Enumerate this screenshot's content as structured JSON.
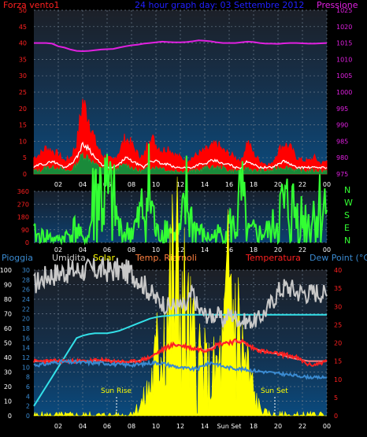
{
  "colors": {
    "wind": "#ff2020",
    "gust": "#ff0000",
    "pressure": "#e020e0",
    "direction": "#33ff33",
    "humidity": "#c8c8c8",
    "solar": "#ffff00",
    "temperature": "#ff2020",
    "temp_outline": "#ff8080",
    "dewpoint": "#3a8ad0",
    "cyan_series": "#33e0e8",
    "title": "#2020ff",
    "axis_blue": "#3a8ad0",
    "axis_magenta": "#e020e0",
    "axis_red": "#ff2020",
    "axis_green": "#33ff33"
  },
  "chart_data": [
    {
      "type": "line",
      "id": "wind-pressure",
      "title": "24 hour graph day: 03 Settembre 2012",
      "left_label": "Forza vento1",
      "right_label": "Pressione",
      "x_ticks": [
        "02",
        "04",
        "06",
        "08",
        "10",
        "12",
        "14",
        "16",
        "18",
        "20",
        "22",
        "00"
      ],
      "y_left_ticks": [
        "0",
        "5",
        "10",
        "15",
        "20",
        "25",
        "30",
        "35",
        "40",
        "45",
        "50"
      ],
      "y_left_range": [
        0,
        50
      ],
      "y_right_ticks": [
        "975",
        "980",
        "985",
        "990",
        "995",
        "1000",
        "1005",
        "1010",
        "1015",
        "1020",
        "1025"
      ],
      "y_right_range": [
        975,
        1025
      ],
      "series": [
        {
          "values": [
            5,
            6,
            8,
            7,
            6,
            4,
            5,
            9,
            22,
            17,
            10,
            6,
            5,
            4,
            7,
            11,
            9,
            6,
            5,
            12,
            9,
            7,
            8,
            6,
            5,
            4,
            5,
            6,
            7,
            8,
            9,
            7,
            6,
            5,
            4,
            10,
            6,
            4,
            3,
            3,
            7,
            9,
            8,
            5,
            4,
            4,
            5,
            3,
            4
          ]
        },
        {
          "values": [
            2,
            3,
            3,
            4,
            3,
            2,
            3,
            5,
            9,
            8,
            5,
            3,
            2,
            2,
            3,
            5,
            4,
            3,
            2,
            4,
            4,
            3,
            3,
            2,
            2,
            2,
            2,
            3,
            3,
            4,
            4,
            3,
            3,
            2,
            2,
            4,
            3,
            2,
            2,
            2,
            3,
            4,
            3,
            2,
            2,
            2,
            2,
            2,
            2
          ]
        },
        {
          "values": [
            1,
            1,
            2,
            2,
            2,
            1,
            1,
            3,
            6,
            5,
            3,
            2,
            1,
            1,
            2,
            3,
            2,
            1,
            1,
            2,
            2,
            2,
            1,
            1,
            1,
            1,
            1,
            1,
            2,
            2,
            2,
            2,
            1,
            1,
            1,
            2,
            1,
            1,
            1,
            1,
            2,
            2,
            2,
            1,
            1,
            1,
            1,
            1,
            1
          ]
        },
        {
          "values": [
            1015,
            1015,
            1015,
            1014.8,
            1014,
            1013.6,
            1013,
            1012.6,
            1012.5,
            1012.6,
            1012.8,
            1013,
            1013.1,
            1013.2,
            1013.6,
            1014,
            1014.3,
            1014.5,
            1014.8,
            1015,
            1015.2,
            1015.4,
            1015.3,
            1015.2,
            1015.2,
            1015.3,
            1015.5,
            1015.8,
            1015.7,
            1015.5,
            1015.2,
            1015,
            1015,
            1015,
            1015.2,
            1015.4,
            1015.3,
            1015,
            1014.8,
            1014.8,
            1014.7,
            1014.9,
            1015,
            1015,
            1014.9,
            1014.8,
            1014.8,
            1014.9,
            1015
          ]
        }
      ]
    },
    {
      "type": "line",
      "id": "wind-direction",
      "x_ticks": [
        "02",
        "04",
        "06",
        "08",
        "10",
        "12",
        "14",
        "16",
        "18",
        "20",
        "22",
        "00"
      ],
      "y_left_ticks": [
        "0",
        "90",
        "180",
        "270",
        "360"
      ],
      "y_left_range": [
        0,
        360
      ],
      "right_letters": [
        "N",
        "W",
        "S",
        "E",
        "N"
      ],
      "series": [
        {
          "values": [
            60,
            40,
            50,
            30,
            20,
            40,
            60,
            100,
            20,
            40,
            360,
            320,
            300,
            260,
            90,
            60,
            80,
            120,
            240,
            340,
            60,
            80,
            110,
            40,
            70,
            280,
            120,
            80,
            40,
            30,
            60,
            50,
            120,
            90,
            300,
            60,
            70,
            60,
            70,
            80,
            200,
            220,
            230,
            200,
            160,
            150,
            210,
            230,
            230
          ]
        }
      ]
    },
    {
      "type": "line",
      "id": "environment",
      "legend": [
        "Pioggia",
        "Umidita",
        "Solar",
        "Temp. Riarnoli",
        "Temperatura",
        "Dew Point (°C)"
      ],
      "x_ticks": [
        "02",
        "04",
        "06",
        "08",
        "10",
        "12",
        "14",
        "Sun Set",
        "18",
        "20",
        "22",
        "00"
      ],
      "y_left_ticks": [
        "0",
        "10",
        "20",
        "30",
        "40",
        "50",
        "60",
        "70",
        "80",
        "90",
        "100"
      ],
      "y_left_range": [
        0,
        100
      ],
      "y_mid_ticks": [
        "0",
        "2",
        "4",
        "6",
        "8",
        "10",
        "12",
        "14",
        "16",
        "18",
        "20",
        "22",
        "24",
        "26",
        "28",
        "30"
      ],
      "y_mid_range": [
        0,
        30
      ],
      "y_right_ticks": [
        "0",
        "5",
        "10",
        "15",
        "20",
        "25",
        "30",
        "35",
        "40"
      ],
      "y_right_range": [
        0,
        40
      ],
      "annotations": [
        "Sun Rise",
        "Sun Set"
      ],
      "series": [
        {
          "values": [
            90,
            93,
            96,
            97,
            98,
            99,
            99,
            100,
            100,
            100,
            100,
            100,
            100,
            100,
            100,
            99,
            98,
            95,
            90,
            85,
            80,
            78,
            75,
            76,
            75,
            74,
            85,
            72,
            70,
            68,
            70,
            65,
            70,
            68,
            65,
            65,
            65,
            67,
            72,
            78,
            85,
            88,
            88,
            85,
            85,
            84,
            85,
            85,
            82
          ]
        },
        {
          "values": [
            0,
            0,
            0,
            0,
            0,
            0,
            0,
            0,
            0,
            0,
            0,
            0,
            0,
            0,
            0,
            0,
            2,
            5,
            10,
            20,
            35,
            60,
            75,
            90,
            85,
            60,
            45,
            40,
            30,
            25,
            30,
            40,
            85,
            70,
            45,
            30,
            15,
            5,
            2,
            0,
            0,
            0,
            0,
            0,
            0,
            0,
            0,
            0,
            0
          ]
        },
        {
          "values": [
            15,
            15,
            15,
            15,
            15,
            15,
            15,
            15,
            15,
            15,
            15.2,
            15.2,
            15.1,
            15,
            14.9,
            14.8,
            14.8,
            15,
            15.5,
            16,
            17,
            18,
            19,
            19.5,
            19.3,
            19,
            18.5,
            18.3,
            18,
            18.5,
            19.5,
            20,
            20.2,
            20.4,
            20.5,
            19.5,
            18.5,
            18,
            17.5,
            17.2,
            17,
            16.8,
            16.5,
            16,
            15,
            14,
            14,
            14.5,
            15
          ]
        },
        {
          "values": [
            15,
            15,
            15,
            15,
            15,
            15,
            15,
            15,
            15,
            15,
            15.2,
            15.2,
            15.1,
            15,
            14.9,
            14.8,
            14.8,
            15,
            15.5,
            16,
            17,
            18,
            19,
            19.5,
            19.3,
            19,
            18.5,
            18.3,
            18,
            18.5,
            19.5,
            20,
            20.2,
            20.4,
            20.5,
            19.5,
            18.5,
            18,
            17.5,
            17.2,
            17,
            16.5,
            16,
            15.6,
            15.3,
            15,
            15,
            15,
            15
          ]
        },
        {
          "values": [
            14,
            14,
            14.2,
            14.5,
            14.8,
            14.8,
            14.7,
            14.7,
            14.6,
            14.6,
            14.5,
            14.5,
            14.4,
            14.2,
            14,
            14,
            14,
            14,
            14.2,
            14.5,
            14.6,
            14.4,
            14,
            13.6,
            13.2,
            13,
            12.8,
            13,
            14,
            14.6,
            14.2,
            13.5,
            13.2,
            13,
            12.8,
            12.6,
            12.4,
            12.2,
            12,
            11.8,
            11.6,
            11.4,
            11.2,
            11,
            10.8,
            10.6,
            10.5,
            10.5,
            10.5
          ]
        },
        {
          "values": [
            2,
            4,
            6,
            8,
            10,
            12,
            14,
            16,
            16.5,
            16.8,
            17,
            17,
            17,
            17.2,
            17.5,
            18,
            18.5,
            19,
            19.5,
            20,
            20.3,
            20.5,
            20.6,
            20.7,
            20.8,
            20.8,
            20.8,
            20.8,
            20.8,
            20.8,
            20.8,
            20.8,
            20.8,
            20.8,
            20.8,
            20.8,
            20.8,
            20.8,
            20.8,
            20.8,
            20.8,
            20.8,
            20.8,
            20.8,
            20.8,
            20.8,
            20.8,
            20.8,
            20.8
          ]
        }
      ]
    }
  ]
}
